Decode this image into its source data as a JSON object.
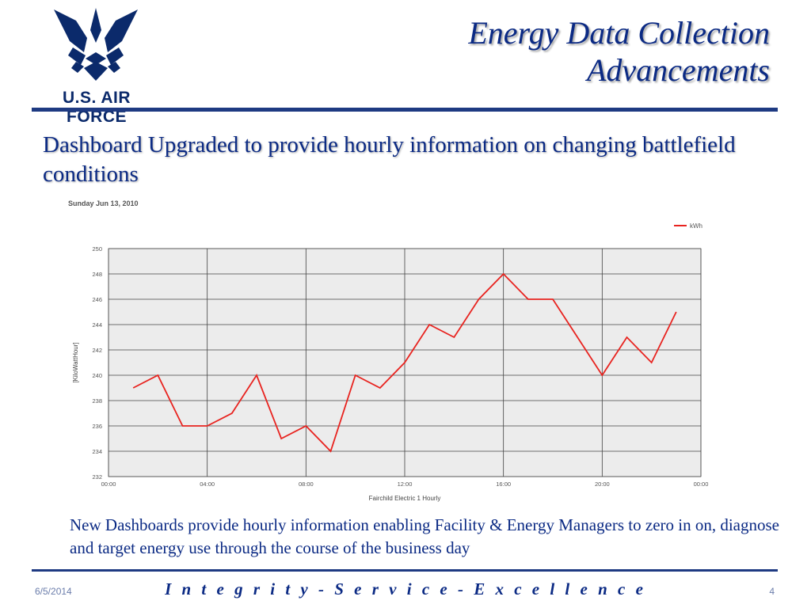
{
  "logo": {
    "text": "U.S. AIR FORCE",
    "icon": "air-force-wings-icon",
    "color": "#0b2a6b"
  },
  "slide": {
    "title_line1": "Energy Data Collection",
    "title_line2": "Advancements",
    "subtitle": "Dashboard Upgraded to provide hourly information on changing battlefield conditions",
    "caption": "New Dashboards provide hourly information enabling Facility & Energy Managers to zero in on, diagnose and target energy use through the course of the business day"
  },
  "footer": {
    "date": "6/5/2014",
    "motto": "I n t e g r i t y  -  S e r v i c e  -  E x c e l l e n c e",
    "page": "4"
  },
  "chart_data": {
    "type": "line",
    "title": "Sunday Jun 13, 2010",
    "xlabel": "Fairchild Electric 1 Hourly",
    "ylabel": "[KiloWattHour]",
    "legend": "top-right",
    "grid": true,
    "xlim": [
      0,
      24
    ],
    "ylim": [
      232,
      250
    ],
    "y_ticks": [
      232,
      234,
      236,
      238,
      240,
      242,
      244,
      246,
      248,
      250
    ],
    "x_ticks": [
      0,
      4,
      8,
      12,
      16,
      20,
      24
    ],
    "x_tick_labels": [
      "00:00",
      "04:00",
      "08:00",
      "12:00",
      "16:00",
      "20:00",
      "00:00"
    ],
    "series": [
      {
        "name": "kWh",
        "color": "#e8231f",
        "x": [
          1,
          2,
          3,
          4,
          5,
          6,
          7,
          8,
          9,
          10,
          11,
          12,
          13,
          14,
          15,
          16,
          17,
          18,
          19,
          20,
          21,
          22,
          23
        ],
        "values": [
          239,
          240,
          236,
          236,
          237,
          240,
          235,
          236,
          234,
          240,
          239,
          241,
          244,
          243,
          246,
          248,
          246,
          246,
          243,
          240,
          243,
          241,
          245
        ]
      }
    ]
  }
}
